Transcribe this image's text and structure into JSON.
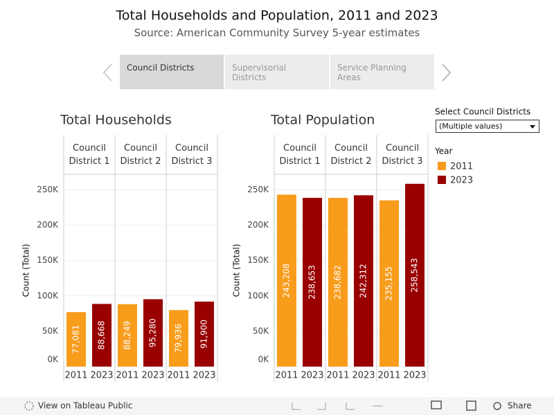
{
  "title": "Total Households and Population, 2011 and 2023",
  "subtitle": "Source: American Community Survey 5-year estimates",
  "tabs": [
    "Council Districts",
    "Supervisorial Districts",
    "Service Planning Areas"
  ],
  "filter": {
    "label": "Select Council Districts",
    "value": "(Multiple values)"
  },
  "legend_title": "Year",
  "toolbar": {
    "view": "View on Tableau Public",
    "share": "Share"
  },
  "chart_data": [
    {
      "type": "bar",
      "title": "Total Households",
      "ylabel": "Count (Total)",
      "groups": [
        "Council District 1",
        "Council District 2",
        "Council District 3"
      ],
      "series": [
        {
          "name": "2011",
          "color": "#f89c1c",
          "values": [
            77081,
            88249,
            79936
          ],
          "value_labels": [
            "77,081",
            "88,249",
            "79,936"
          ]
        },
        {
          "name": "2023",
          "color": "#990000",
          "values": [
            88668,
            95280,
            91900
          ],
          "value_labels": [
            "88,668",
            "95,280",
            "91,900"
          ]
        }
      ],
      "ylim": [
        0,
        272000
      ],
      "yticks": [
        {
          "value": 0,
          "label": "0K"
        },
        {
          "value": 50000,
          "label": "50K"
        },
        {
          "value": 100000,
          "label": "100K"
        },
        {
          "value": 150000,
          "label": "150K"
        },
        {
          "value": 200000,
          "label": "200K"
        },
        {
          "value": 250000,
          "label": "250K"
        }
      ],
      "grid": true
    },
    {
      "type": "bar",
      "title": "Total Population",
      "ylabel": "Count (Total)",
      "groups": [
        "Council District 1",
        "Council District 2",
        "Council District 3"
      ],
      "series": [
        {
          "name": "2011",
          "color": "#f89c1c",
          "values": [
            243208,
            238682,
            235155
          ],
          "value_labels": [
            "243,208",
            "238,682",
            "235,155"
          ]
        },
        {
          "name": "2023",
          "color": "#990000",
          "values": [
            238653,
            242312,
            258543
          ],
          "value_labels": [
            "238,653",
            "242,312",
            "258,543"
          ]
        }
      ],
      "ylim": [
        0,
        272000
      ],
      "yticks": [
        {
          "value": 0,
          "label": "0K"
        },
        {
          "value": 50000,
          "label": "50K"
        },
        {
          "value": 100000,
          "label": "100K"
        },
        {
          "value": 150000,
          "label": "150K"
        },
        {
          "value": 200000,
          "label": "200K"
        },
        {
          "value": 250000,
          "label": "250K"
        }
      ],
      "grid": true
    }
  ]
}
